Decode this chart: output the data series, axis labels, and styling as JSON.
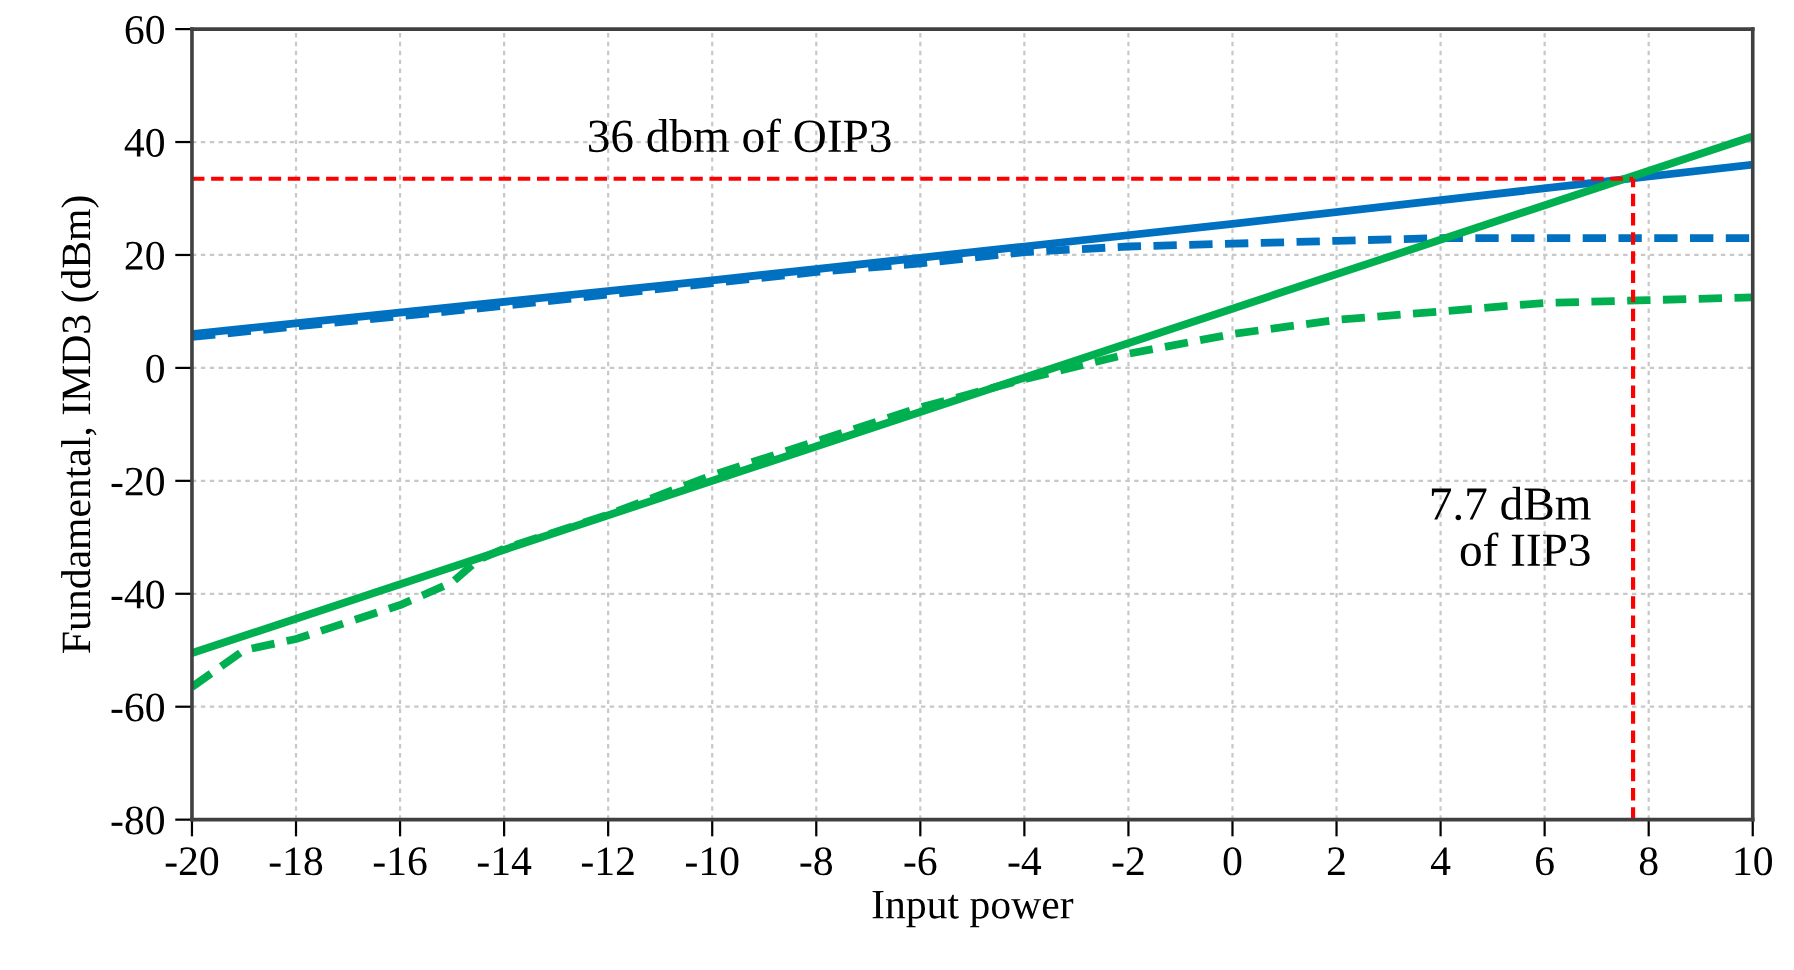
{
  "chart_data": {
    "type": "line",
    "xlabel": "Input power",
    "ylabel": "Fundamental, IMD3 (dBm)",
    "xlim": [
      -20,
      10
    ],
    "xticks": [
      -20,
      -18,
      -16,
      -14,
      -12,
      -10,
      -8,
      -6,
      -4,
      -2,
      0,
      2,
      4,
      6,
      8,
      10
    ],
    "ylim": [
      -80,
      60
    ],
    "yticks": [
      -80,
      -60,
      -40,
      -20,
      0,
      20,
      40,
      60
    ],
    "grid": true,
    "marker": "none",
    "series": [
      {
        "color": "#0070c0",
        "line_style": "solid",
        "x": [
          -20,
          -10,
          -4,
          0,
          10
        ],
        "values": [
          6,
          15.5,
          21.5,
          25.5,
          36
        ]
      },
      {
        "color": "#0070c0",
        "line_style": "dashed",
        "x": [
          -20,
          -14,
          -10,
          -8,
          -6,
          -4,
          -2,
          0,
          2,
          4,
          6,
          10
        ],
        "values": [
          5.5,
          11,
          15,
          17,
          18.5,
          20.5,
          21.5,
          22,
          22.5,
          23,
          23,
          23
        ]
      },
      {
        "color": "#00b050",
        "line_style": "solid",
        "x": [
          -20,
          10
        ],
        "values": [
          -50.5,
          41
        ]
      },
      {
        "color": "#00b050",
        "line_style": "dashed",
        "x": [
          -20,
          -19,
          -18,
          -16,
          -15,
          -14.5,
          -14,
          -12,
          -10,
          -8,
          -6,
          -4,
          -2,
          0,
          2,
          4,
          6,
          8,
          10
        ],
        "values": [
          -56.5,
          -50,
          -48,
          -42,
          -38,
          -34,
          -32,
          -26,
          -19,
          -13,
          -7,
          -2,
          2.5,
          6,
          8.5,
          10,
          11.5,
          12,
          12.5
        ]
      }
    ],
    "ref_lines": [
      {
        "axis": "y",
        "value": 33.5,
        "label": "36 dbm of OIP3",
        "color": "#ff0000",
        "line_style": "dashed"
      },
      {
        "axis": "x",
        "value": 7.7,
        "label": "7.7 dBm\nof IIP3",
        "color": "#ff0000",
        "line_style": "dashed"
      }
    ]
  }
}
